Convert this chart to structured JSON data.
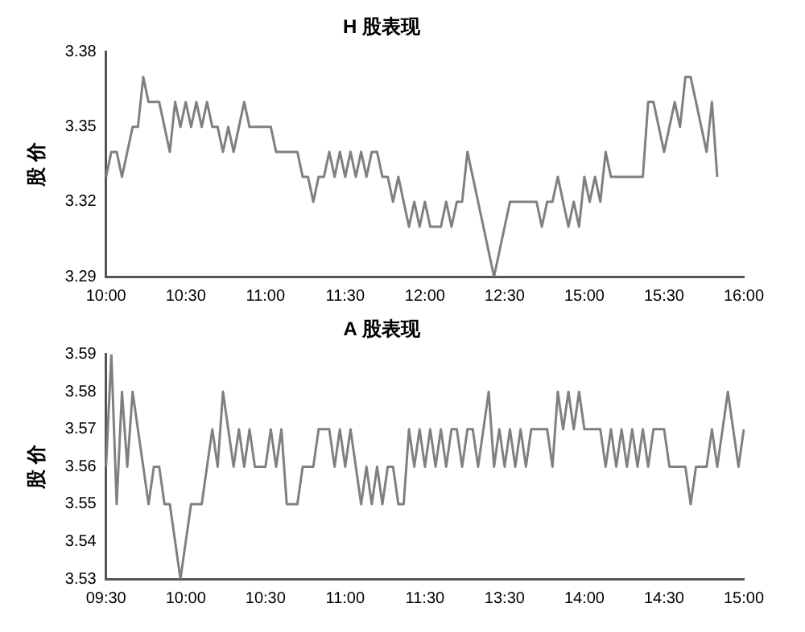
{
  "chart_data": [
    {
      "type": "line",
      "title": "H 股表现",
      "ylabel": "股 价",
      "marker": "none",
      "categories": [
        "10:00",
        null,
        null,
        null,
        null,
        null,
        null,
        null,
        null,
        null,
        null,
        null,
        null,
        null,
        null,
        "10:30",
        null,
        null,
        null,
        null,
        null,
        null,
        null,
        null,
        null,
        null,
        null,
        null,
        null,
        null,
        "11:00",
        null,
        null,
        null,
        null,
        null,
        null,
        null,
        null,
        null,
        null,
        null,
        null,
        null,
        null,
        "11:30",
        null,
        null,
        null,
        null,
        null,
        null,
        null,
        null,
        null,
        null,
        null,
        null,
        null,
        null,
        "12:00",
        null,
        null,
        null,
        null,
        null,
        null,
        null,
        null,
        null,
        null,
        null,
        null,
        null,
        null,
        "12:30",
        null,
        null,
        null,
        null,
        null,
        null,
        null,
        null,
        null,
        null,
        null,
        null,
        null,
        null,
        "15:00",
        null,
        null,
        null,
        null,
        null,
        null,
        null,
        null,
        null,
        null,
        null,
        null,
        null,
        null,
        "15:30",
        null,
        null,
        null,
        null,
        null,
        null,
        null,
        null,
        null,
        null,
        null,
        null,
        null,
        null,
        "16:00"
      ],
      "series": [
        {
          "color": "#808080",
          "values": [
            3.33,
            3.34,
            3.34,
            3.33,
            3.34,
            3.35,
            3.35,
            3.37,
            3.36,
            3.36,
            3.36,
            3.35,
            3.34,
            3.36,
            3.35,
            3.36,
            3.35,
            3.36,
            3.35,
            3.36,
            3.35,
            3.35,
            3.34,
            3.35,
            3.34,
            3.35,
            3.36,
            3.35,
            3.35,
            3.35,
            3.35,
            3.35,
            3.34,
            3.34,
            3.34,
            3.34,
            3.34,
            3.33,
            3.33,
            3.32,
            3.33,
            3.33,
            3.34,
            3.33,
            3.34,
            3.33,
            3.34,
            3.33,
            3.34,
            3.33,
            3.34,
            3.34,
            3.33,
            3.33,
            3.32,
            3.33,
            3.32,
            3.31,
            3.32,
            3.31,
            3.32,
            3.31,
            3.31,
            3.31,
            3.32,
            3.31,
            3.32,
            3.32,
            3.34,
            3.33,
            3.32,
            3.31,
            3.3,
            3.29,
            3.3,
            3.31,
            3.32,
            3.32,
            3.32,
            3.32,
            3.32,
            3.32,
            3.31,
            3.32,
            3.32,
            3.33,
            3.32,
            3.31,
            3.32,
            3.31,
            3.33,
            3.32,
            3.33,
            3.32,
            3.34,
            3.33,
            3.33,
            3.33,
            3.33,
            3.33,
            3.33,
            3.33,
            3.36,
            3.36,
            3.35,
            3.34,
            3.35,
            3.36,
            3.35,
            3.37,
            3.37,
            3.36,
            3.35,
            3.34,
            3.36,
            3.33,
            null,
            null,
            null,
            null,
            null
          ]
        }
      ],
      "ylim": [
        3.29,
        3.38
      ],
      "yticks": [
        3.29,
        3.32,
        3.35,
        3.38
      ]
    },
    {
      "type": "line",
      "title": "A 股表现",
      "ylabel": "股 价",
      "marker": "none",
      "categories": [
        "09:30",
        null,
        null,
        null,
        null,
        null,
        null,
        null,
        null,
        null,
        null,
        null,
        null,
        null,
        null,
        "10:00",
        null,
        null,
        null,
        null,
        null,
        null,
        null,
        null,
        null,
        null,
        null,
        null,
        null,
        null,
        "10:30",
        null,
        null,
        null,
        null,
        null,
        null,
        null,
        null,
        null,
        null,
        null,
        null,
        null,
        null,
        "11:00",
        null,
        null,
        null,
        null,
        null,
        null,
        null,
        null,
        null,
        null,
        null,
        null,
        null,
        null,
        "11:30",
        null,
        null,
        null,
        null,
        null,
        null,
        null,
        null,
        null,
        null,
        null,
        null,
        null,
        null,
        "13:30",
        null,
        null,
        null,
        null,
        null,
        null,
        null,
        null,
        null,
        null,
        null,
        null,
        null,
        null,
        "14:00",
        null,
        null,
        null,
        null,
        null,
        null,
        null,
        null,
        null,
        null,
        null,
        null,
        null,
        null,
        "14:30",
        null,
        null,
        null,
        null,
        null,
        null,
        null,
        null,
        null,
        null,
        null,
        null,
        null,
        null,
        "15:00"
      ],
      "series": [
        {
          "color": "#808080",
          "values": [
            3.56,
            3.59,
            3.55,
            3.58,
            3.56,
            3.58,
            3.57,
            3.56,
            3.55,
            3.56,
            3.56,
            3.55,
            3.55,
            3.54,
            3.53,
            3.54,
            3.55,
            3.55,
            3.55,
            3.56,
            3.57,
            3.56,
            3.58,
            3.57,
            3.56,
            3.57,
            3.56,
            3.57,
            3.56,
            3.56,
            3.56,
            3.57,
            3.56,
            3.57,
            3.55,
            3.55,
            3.55,
            3.56,
            3.56,
            3.56,
            3.57,
            3.57,
            3.57,
            3.56,
            3.57,
            3.56,
            3.57,
            3.56,
            3.55,
            3.56,
            3.55,
            3.56,
            3.55,
            3.56,
            3.56,
            3.55,
            3.55,
            3.57,
            3.56,
            3.57,
            3.56,
            3.57,
            3.56,
            3.57,
            3.56,
            3.57,
            3.57,
            3.56,
            3.57,
            3.57,
            3.56,
            3.57,
            3.58,
            3.56,
            3.57,
            3.56,
            3.57,
            3.56,
            3.57,
            3.56,
            3.57,
            3.57,
            3.57,
            3.57,
            3.56,
            3.58,
            3.57,
            3.58,
            3.57,
            3.58,
            3.57,
            3.57,
            3.57,
            3.57,
            3.56,
            3.57,
            3.56,
            3.57,
            3.56,
            3.57,
            3.56,
            3.57,
            3.56,
            3.57,
            3.57,
            3.57,
            3.56,
            3.56,
            3.56,
            3.56,
            3.55,
            3.56,
            3.56,
            3.56,
            3.57,
            3.56,
            3.57,
            3.58,
            3.57,
            3.56,
            3.57
          ]
        }
      ],
      "ylim": [
        3.53,
        3.59
      ],
      "yticks": [
        3.53,
        3.54,
        3.55,
        3.56,
        3.57,
        3.58,
        3.59
      ]
    }
  ]
}
